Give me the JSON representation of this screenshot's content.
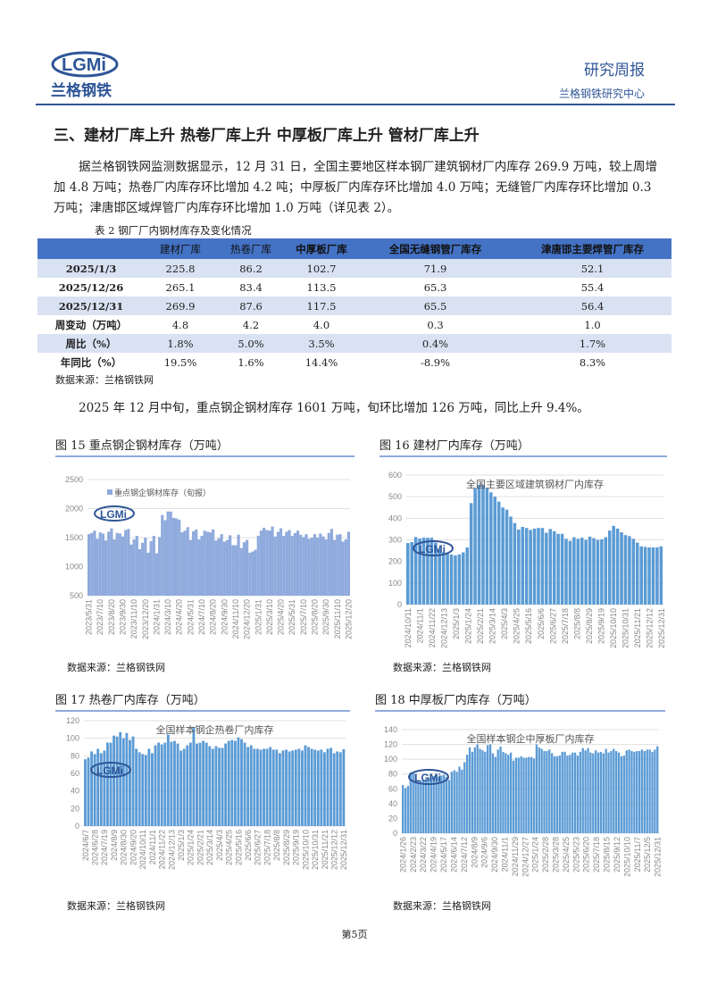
{
  "header": {
    "logo_text": "LGMi",
    "logo_cn": "兰格钢铁",
    "title": "研究周报",
    "subtitle": "兰格钢铁研究中心"
  },
  "section_title": "三、建材厂库上升 热卷厂库上升 中厚板厂库上升 管材厂库上升",
  "paragraph1": "据兰格钢铁网监测数据显示，12 月 31 日，全国主要地区样本钢厂建筑钢材厂内库存 269.9 万吨，较上周增加 4.8 万吨；热卷厂内库存环比增加 4.2 吨；中厚板厂内库存环比增加 4.0 万吨；无缝管厂内库存环比增加 0.3 万吨；津唐邯区域焊管厂内库存环比增加 1.0 万吨（详见表 2）。",
  "table": {
    "caption": "表 2  钢厂厂内钢材库存及变化情况",
    "headers": [
      "",
      "建材厂库",
      "热卷厂库",
      "中厚板厂库",
      "全国无缝钢管厂库存",
      "津唐邯主要焊管厂库存"
    ],
    "rows": [
      [
        "2025/1/3",
        "225.8",
        "86.2",
        "102.7",
        "71.9",
        "52.1"
      ],
      [
        "2025/12/26",
        "265.1",
        "83.4",
        "113.5",
        "65.3",
        "55.4"
      ],
      [
        "2025/12/31",
        "269.9",
        "87.6",
        "117.5",
        "65.5",
        "56.4"
      ],
      [
        "周变动（万吨）",
        "4.8",
        "4.2",
        "4.0",
        "0.3",
        "1.0"
      ],
      [
        "周比（%）",
        "1.8%",
        "5.0%",
        "3.5%",
        "0.4%",
        "1.7%"
      ],
      [
        "年同比（%）",
        "19.5%",
        "1.6%",
        "14.4%",
        "-8.9%",
        "8.3%"
      ]
    ],
    "source": "数据来源：兰格钢铁网"
  },
  "paragraph2": "2025 年 12 月中旬，重点钢企钢材库存 1601 万吨，旬环比增加 126 万吨，同比上升 9.4%。",
  "chart_source": "数据来源：兰格钢铁网",
  "page_number": "第5页",
  "chart_data": [
    {
      "type": "bar",
      "title": "图 15  重点钢企钢材库存（万吨）",
      "legend": "重点钢企钢材库存（旬报）",
      "legend_position": "top",
      "ylim": [
        500,
        2500
      ],
      "yticks": [
        500,
        1000,
        1500,
        2000,
        2500
      ],
      "grid": true,
      "color": "#8faadc",
      "tick_labels": [
        "2023/5/31",
        "2023/7/10",
        "2023/8/20",
        "2023/9/30",
        "2023/11/10",
        "2023/12/20",
        "2024/1/31",
        "2024/3/10",
        "2024/4/20",
        "2024/5/31",
        "2024/7/10",
        "2024/8/20",
        "2024/9/30",
        "2024/11/10",
        "2024/12/20",
        "2025/1/31",
        "2025/3/10",
        "2025/4/20",
        "2025/5/31",
        "2025/7/10",
        "2025/8/20",
        "2025/9/30",
        "2025/11/10",
        "2025/12/20"
      ],
      "values": [
        1560,
        1580,
        1620,
        1480,
        1590,
        1570,
        1450,
        1600,
        1660,
        1470,
        1580,
        1570,
        1520,
        1630,
        1650,
        1380,
        1470,
        1530,
        1300,
        1410,
        1500,
        1240,
        1440,
        1530,
        1230,
        1510,
        1890,
        1800,
        1950,
        1950,
        1840,
        1830,
        1810,
        1590,
        1620,
        1680,
        1460,
        1610,
        1640,
        1470,
        1530,
        1620,
        1600,
        1590,
        1640,
        1450,
        1490,
        1560,
        1430,
        1460,
        1540,
        1370,
        1370,
        1550,
        1320,
        1420,
        1460,
        1240,
        1260,
        1290,
        1530,
        1620,
        1670,
        1630,
        1620,
        1690,
        1520,
        1600,
        1660,
        1530,
        1600,
        1630,
        1530,
        1580,
        1620,
        1550,
        1510,
        1560,
        1480,
        1500,
        1560,
        1500,
        1570,
        1520,
        1470,
        1580,
        1650,
        1460,
        1550,
        1560,
        1430,
        1470,
        1601
      ]
    },
    {
      "type": "bar",
      "title": "图 16  建材厂内库存（万吨）",
      "legend": "全国主要区域建筑钢材厂内库存",
      "legend_position": "top",
      "ylim": [
        0,
        600
      ],
      "yticks": [
        0,
        100,
        200,
        300,
        400,
        500,
        600
      ],
      "grid": true,
      "color": "#5b9bd5",
      "tick_labels": [
        "2024/10/11",
        "2024/11/1",
        "2024/11/22",
        "2024/12/13",
        "2025/1/3",
        "2025/1/24",
        "2025/2/21",
        "2025/3/14",
        "2025/4/3",
        "2025/4/25",
        "2025/5/16",
        "2025/6/6",
        "2025/6/27",
        "2025/7/18",
        "2025/8/8",
        "2025/8/29",
        "2025/9/19",
        "2025/10/10",
        "2025/10/31",
        "2025/11/21",
        "2025/12/12",
        "2025/12/31"
      ],
      "values": [
        285,
        290,
        313,
        306,
        310,
        310,
        310,
        287,
        258,
        243,
        236,
        232,
        228,
        233,
        242,
        265,
        470,
        540,
        555,
        555,
        540,
        520,
        500,
        477,
        450,
        440,
        408,
        378,
        348,
        360,
        355,
        346,
        352,
        355,
        355,
        333,
        350,
        340,
        328,
        328,
        305,
        295,
        312,
        305,
        310,
        300,
        315,
        308,
        300,
        302,
        312,
        343,
        365,
        352,
        335,
        322,
        317,
        305,
        287,
        270,
        267,
        265,
        265,
        265,
        269.9
      ]
    },
    {
      "type": "bar",
      "title": "图 17  热卷厂内库存（万吨）",
      "legend": "全国样本钢企热卷厂内库存",
      "legend_position": "top",
      "ylim": [
        0,
        120
      ],
      "yticks": [
        0,
        20,
        40,
        60,
        80,
        100,
        120
      ],
      "grid": true,
      "color": "#5b9bd5",
      "tick_labels": [
        "2024/6/7",
        "2024/6/28",
        "2024/7/19",
        "2024/8/9",
        "2024/8/30",
        "2024/9/20",
        "2024/10/11",
        "2024/11/1",
        "2024/11/22",
        "2024/12/13",
        "2025/1/3",
        "2025/1/24",
        "2025/2/21",
        "2025/3/14",
        "2025/4/3",
        "2025/4/25",
        "2025/5/16",
        "2025/6/6",
        "2025/6/27",
        "2025/7/18",
        "2025/8/8",
        "2025/8/29",
        "2025/9/19",
        "2025/10/10",
        "2025/10/31",
        "2025/11/21",
        "2025/12/12",
        "2025/12/31"
      ],
      "values": [
        76,
        78,
        85,
        82,
        88,
        83,
        86,
        95,
        95,
        103,
        102,
        107,
        100,
        106,
        98,
        102,
        88,
        84,
        82,
        81,
        88,
        83,
        92,
        95,
        93,
        95,
        104,
        96,
        97,
        94,
        86,
        88,
        92,
        95,
        113,
        94,
        95,
        97,
        95,
        91,
        88,
        91,
        89,
        89,
        94,
        97,
        98,
        97,
        101,
        99,
        95,
        90,
        92,
        88,
        88,
        87,
        88,
        88,
        90,
        87,
        87,
        83,
        86,
        87,
        85,
        86,
        87,
        88,
        86,
        92,
        90,
        88,
        87,
        86,
        87,
        84,
        88,
        89,
        83,
        85,
        84,
        87.6
      ]
    },
    {
      "type": "bar",
      "title": "图 18  中厚板厂内库存（万吨）",
      "legend": "全国样本钢企中厚板厂内库存",
      "legend_position": "top",
      "ylim": [
        0,
        140
      ],
      "yticks": [
        0,
        20,
        40,
        60,
        80,
        100,
        120,
        140
      ],
      "grid": true,
      "color": "#5b9bd5",
      "tick_labels": [
        "2024/1/26",
        "2024/2/23",
        "2024/3/22",
        "2024/4/19",
        "2024/5/17",
        "2024/6/14",
        "2024/7/12",
        "2024/8/9",
        "2024/9/6",
        "2024/9/30",
        "2024/11/1",
        "2024/11/29",
        "2024/12/27",
        "2025/1/24",
        "2025/2/28",
        "2025/3/28",
        "2025/4/25",
        "2025/5/23",
        "2025/6/20",
        "2025/7/18",
        "2025/8/15",
        "2025/9/12",
        "2025/10/10",
        "2025/11/7",
        "2025/12/5",
        "2025/12/31"
      ],
      "values": [
        65,
        61,
        64,
        82,
        81,
        80,
        70,
        71,
        72,
        73,
        75,
        75,
        77,
        77,
        76,
        78,
        79,
        76,
        72,
        83,
        85,
        83,
        90,
        86,
        96,
        106,
        116,
        110,
        116,
        120,
        114,
        112,
        110,
        119,
        120,
        108,
        103,
        113,
        117,
        110,
        108,
        106,
        109,
        98,
        102,
        102,
        104,
        102,
        102,
        103,
        103,
        101,
        120,
        116,
        114,
        111,
        111,
        113,
        108,
        104,
        104,
        105,
        110,
        110,
        105,
        106,
        109,
        109,
        105,
        110,
        115,
        112,
        115,
        109,
        108,
        112,
        109,
        110,
        108,
        114,
        109,
        111,
        114,
        111,
        109,
        104,
        105,
        112,
        113,
        111,
        110,
        111,
        111,
        113,
        111,
        113,
        113,
        110,
        113,
        117.5
      ]
    }
  ]
}
